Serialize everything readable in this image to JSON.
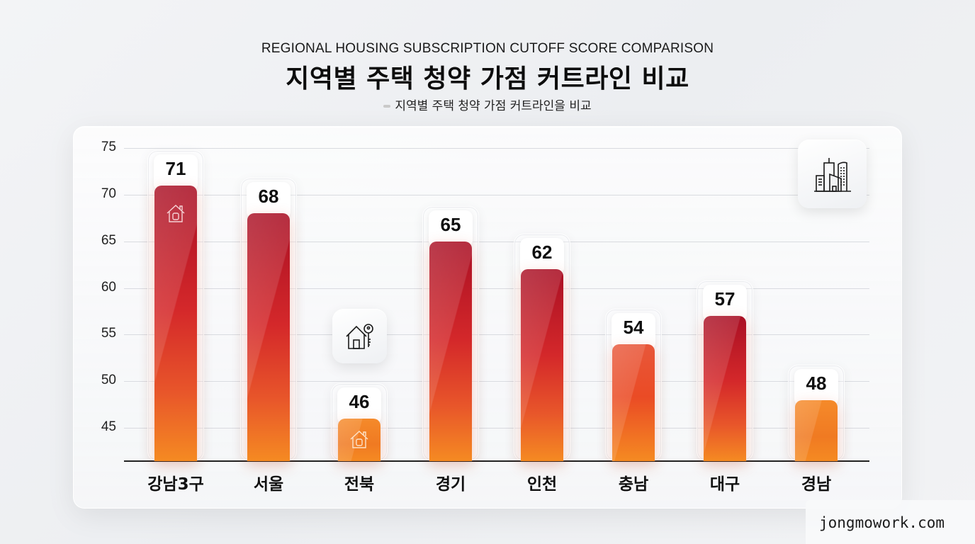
{
  "header": {
    "eyebrow": "REGIONAL HOUSING SUBSCRIPTION CUTOFF SCORE COMPARISON",
    "title": "지역별 주택 청약 가점 커트라인 비교",
    "subtitle": "지역별 주택 청약 가점 커트라인을 비교"
  },
  "watermark": "jongmowork.com",
  "icons": {
    "top_right": "city-buildings-icon",
    "floating": "house-key-icon",
    "bar_1": "house-icon",
    "bar_3": "house-icon"
  },
  "colors": {
    "bar_top_red": "#a90f24",
    "bar_mid_red": "#d4282a",
    "bar_bottom_orange": "#f58a22",
    "low_bar_top": "#f07a30",
    "gridline": "#d9dbe0",
    "axis": "#222222"
  },
  "chart_data": {
    "type": "bar",
    "title": "지역별 주택 청약 가점 커트라인 비교",
    "subtitle": "지역별 주택 청약 가점 커트라인을 비교",
    "eyebrow": "REGIONAL HOUSING SUBSCRIPTION CUTOFF SCORE COMPARISON",
    "categories": [
      "강남3구",
      "서울",
      "전북",
      "경기",
      "인천",
      "충남",
      "대구",
      "경남"
    ],
    "values": [
      71,
      68,
      46,
      65,
      62,
      54,
      57,
      48
    ],
    "data_labels": [
      "71",
      "68",
      "46",
      "65",
      "62",
      "54",
      "57",
      "48"
    ],
    "xlabel": "",
    "ylabel": "",
    "yticks": [
      45,
      50,
      55,
      60,
      65,
      70,
      75
    ],
    "ytick_labels": [
      "45",
      "50",
      "55",
      "60",
      "65",
      "70",
      "75"
    ],
    "ylim": [
      41.4,
      75
    ],
    "grid": true,
    "legend": null
  }
}
